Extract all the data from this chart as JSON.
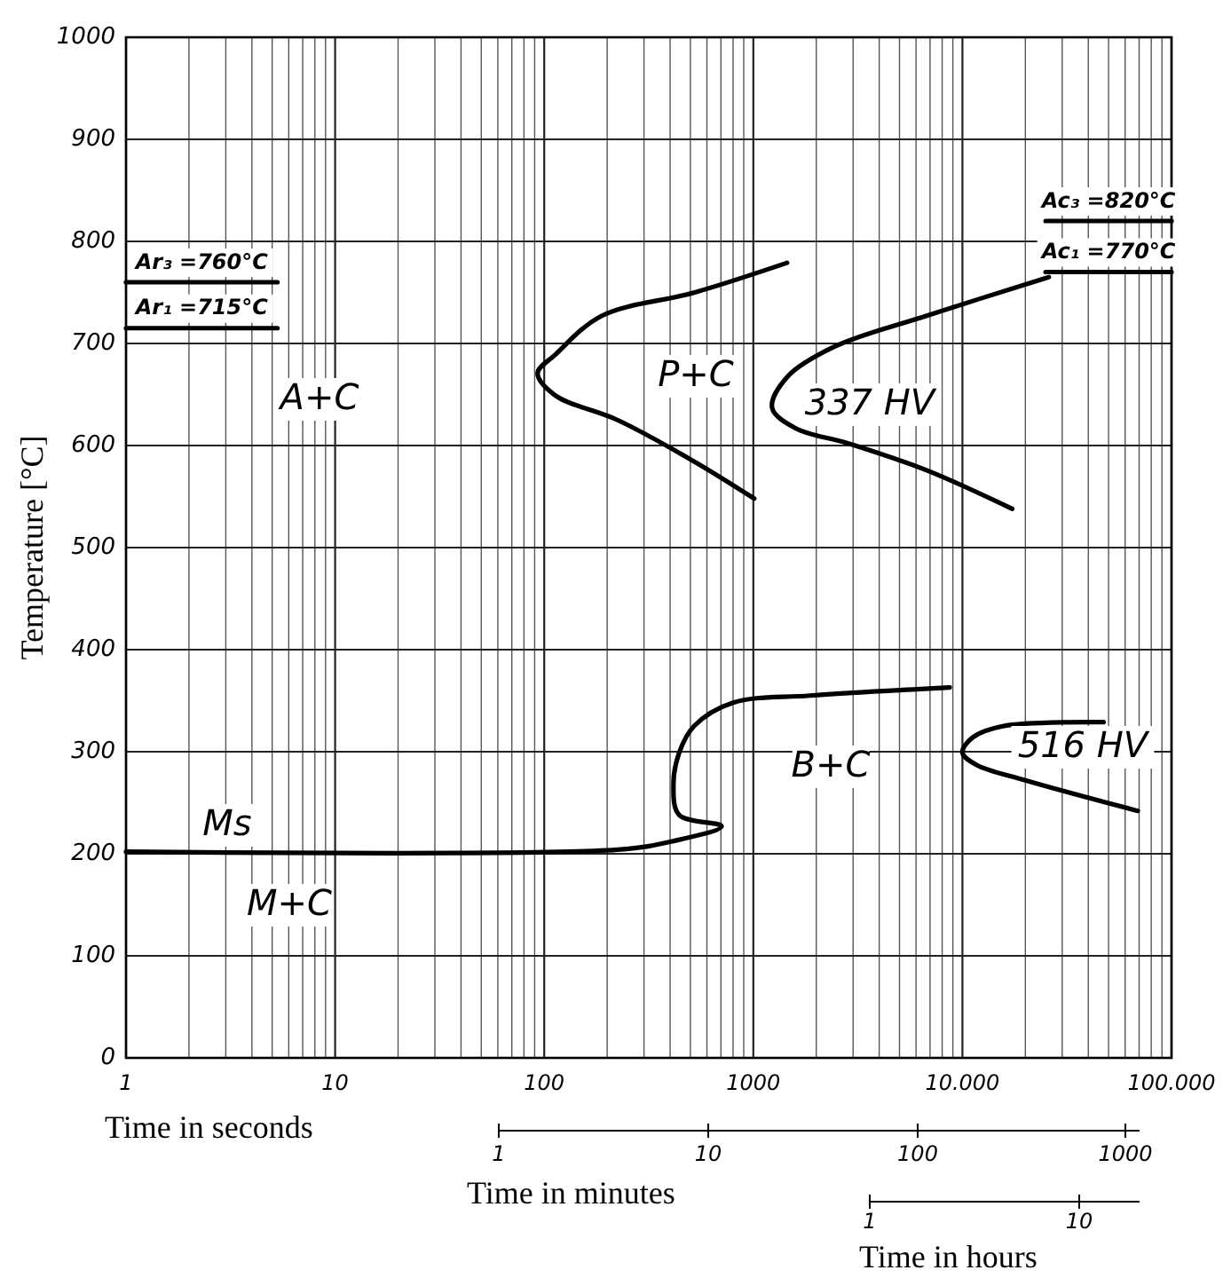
{
  "chart_data": {
    "type": "line",
    "ylabel": "Temperature [°C]",
    "xlabel": "Time in seconds",
    "log": "x",
    "grid": true,
    "line_style": "solid",
    "xlim": [
      1,
      100000
    ],
    "xticks": [
      1,
      10,
      100,
      1000,
      {
        "value": 10000,
        "label": "10.000"
      },
      {
        "value": 100000,
        "label": "100.000"
      }
    ],
    "ylim": [
      0,
      1000
    ],
    "yticks": [
      0,
      100,
      200,
      300,
      400,
      500,
      600,
      700,
      800,
      900,
      1000
    ],
    "series": [
      {
        "color": "#000000",
        "x": [
          1450,
          525,
          188,
          113,
          93,
          113,
          224,
          525,
          1010
        ],
        "values": [
          779,
          750,
          727,
          689,
          671,
          649,
          625,
          584,
          548
        ]
      },
      {
        "color": "#000000",
        "x": [
          25900,
          6700,
          2450,
          1450,
          1230,
          1590,
          2850,
          6700,
          17300
        ],
        "values": [
          765,
          727,
          697,
          667,
          637,
          617,
          602,
          576,
          538
        ]
      },
      {
        "color": "#000000",
        "x": [
          1,
          224,
          405,
          705,
          442,
          415,
          442,
          520,
          800,
          1870,
          8700
        ],
        "values": [
          202,
          204,
          212,
          227,
          238,
          268,
          299,
          325,
          348,
          355,
          363
        ]
      },
      {
        "color": "#000000",
        "x": [
          47300,
          15600,
          11200,
          10000,
          11700,
          20000,
          69000
        ],
        "values": [
          329,
          325,
          314,
          299,
          287,
          272,
          242
        ]
      },
      {
        "name": "Ar₃ =760°C",
        "color": "#000000",
        "x": [
          1,
          5.3
        ],
        "values": [
          760,
          760
        ]
      },
      {
        "name": "Ar₁ =715°C",
        "color": "#000000",
        "x": [
          1,
          5.3
        ],
        "values": [
          715,
          715
        ]
      },
      {
        "name": "Ac₃ =820°C",
        "color": "#000000",
        "x": [
          25000,
          100000
        ],
        "values": [
          820,
          820
        ]
      },
      {
        "name": "Ac₁ =770°C",
        "color": "#000000",
        "x": [
          25000,
          100000
        ],
        "values": [
          770,
          770
        ]
      }
    ],
    "annotations": [
      "A+C",
      "P+C",
      "337 HV",
      "Ms",
      "M+C",
      "B+C",
      "516 HV",
      "Time in minutes",
      "1",
      "10",
      "100",
      "1000",
      "Time in hours",
      "1",
      "10"
    ]
  }
}
